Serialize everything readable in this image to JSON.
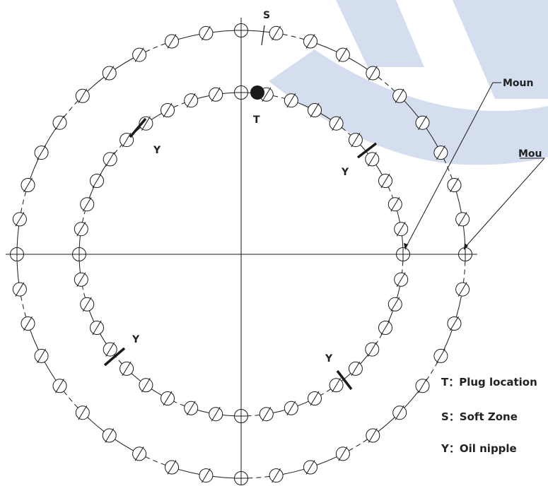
{
  "colors": {
    "line": "#1a1a1a",
    "watermark": "#c5d3e8",
    "plug_fill": "#1a1a1a"
  },
  "labels": {
    "soft_zone_marker": "S",
    "plug_marker": "T",
    "oil_nipple_marker": "Y",
    "mount_inner": "Moun",
    "mount_outer": "Mou"
  },
  "legend": {
    "plug": "T：Plug location",
    "soft_zone": "S：Soft Zone",
    "oil_nipple": "Y：Oil nipple"
  },
  "diagram": {
    "inner_ring_holes": 40,
    "outer_ring_holes": 40,
    "oil_nipples": 4
  }
}
